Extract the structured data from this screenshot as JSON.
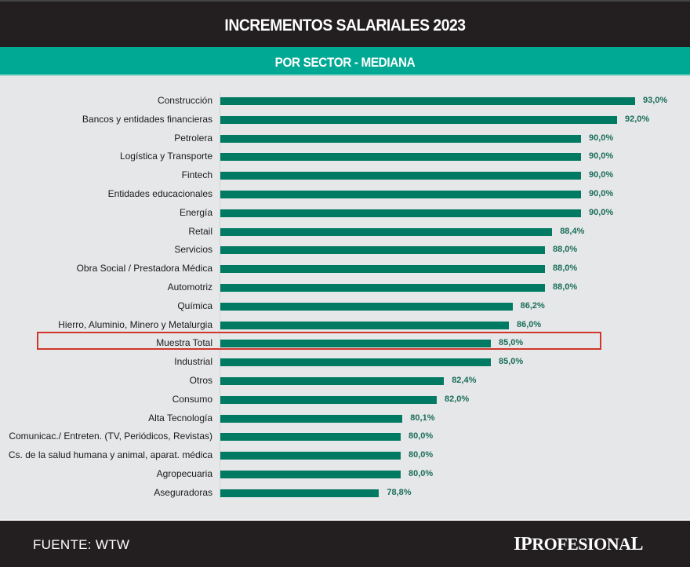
{
  "header": {
    "title": "INCREMENTOS SALARIALES 2023"
  },
  "subheader": {
    "title": "POR SECTOR - MEDIANA"
  },
  "footer": {
    "source": "FUENTE: WTW",
    "brand": "IPROFESIONAL"
  },
  "colors": {
    "header_bg": "#231f20",
    "band": "#00a994",
    "bar": "#007a62",
    "value_text": "#1a6e5a",
    "highlight": "#d0362b",
    "background": "#e6e7e8"
  },
  "chart_data": {
    "type": "bar",
    "orientation": "horizontal",
    "title": "INCREMENTOS SALARIALES 2023",
    "subtitle": "POR SECTOR - MEDIANA",
    "xlabel": "",
    "ylabel": "",
    "unit": "%",
    "axis_baseline": 70,
    "xlim": [
      70,
      95
    ],
    "grid": false,
    "highlighted_category": "Muestra Total",
    "source": "FUENTE: WTW",
    "categories": [
      "Construcción",
      "Bancos y entidades financieras",
      "Petrolera",
      "Logística y Transporte",
      "Fintech",
      "Entidades educacionales",
      "Energía",
      "Retail",
      "Servicios",
      "Obra Social / Prestadora Médica",
      "Automotriz",
      "Química",
      "Hierro, Aluminio, Minero y Metalurgia",
      "Muestra Total",
      "Industrial",
      "Otros",
      "Consumo",
      "Alta Tecnología",
      "Comunicac./ Entreten. (TV, Periódicos, Revistas)",
      "Cs. de la salud humana y animal, aparat. médica",
      "Agropecuaria",
      "Aseguradoras"
    ],
    "values": [
      93.0,
      92.0,
      90.0,
      90.0,
      90.0,
      90.0,
      90.0,
      88.4,
      88.0,
      88.0,
      88.0,
      86.2,
      86.0,
      85.0,
      85.0,
      82.4,
      82.0,
      80.1,
      80.0,
      80.0,
      80.0,
      78.8
    ],
    "value_labels": [
      "93,0%",
      "92,0%",
      "90,0%",
      "90,0%",
      "90,0%",
      "90,0%",
      "90,0%",
      "88,4%",
      "88,0%",
      "88,0%",
      "88,0%",
      "86,2%",
      "86,0%",
      "85,0%",
      "85,0%",
      "82,4%",
      "82,0%",
      "80,1%",
      "80,0%",
      "80,0%",
      "80,0%",
      "78,8%"
    ]
  }
}
